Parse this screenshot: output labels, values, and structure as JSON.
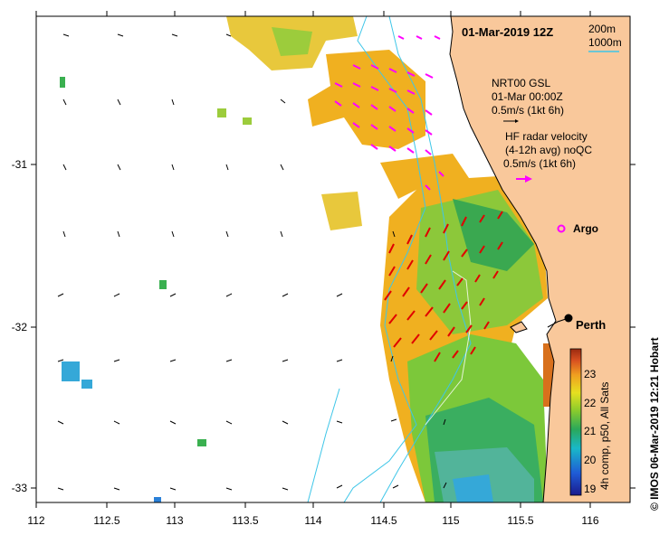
{
  "title": "01-Mar-2019 12Z",
  "depth_legend": {
    "line1": "200m",
    "line2": "1000m"
  },
  "wind": {
    "source": "NRT00 GSL",
    "time": "01-Mar 00:00Z",
    "scale": "0.5m/s (1kt 6h)"
  },
  "radar": {
    "line1": "HF radar velocity",
    "line2": "(4-12h avg) noQC",
    "scale": "0.5m/s (1kt 6h)"
  },
  "argo_label": "Argo",
  "city": "Perth",
  "colorbar": {
    "label": "4h comp, p50, All Sats",
    "ticks": [
      "19",
      "20",
      "21",
      "22",
      "23"
    ]
  },
  "x_ticks": [
    "112",
    "112.5",
    "113",
    "113.5",
    "114",
    "114.5",
    "115",
    "115.5",
    "116"
  ],
  "y_ticks": [
    "-31",
    "-32",
    "-33"
  ],
  "credit": "© IMOS 06-Mar-2019 12:21 Hobart",
  "colors": {
    "land": "#f9c89b",
    "radar_inner": "#ff00ff",
    "radar_outer": "#e00000",
    "isobath": "#3ec6e8",
    "sst_warm": "#f0b020",
    "sst_mid": "#7cc83a",
    "sst_cool": "#2aa85a"
  }
}
